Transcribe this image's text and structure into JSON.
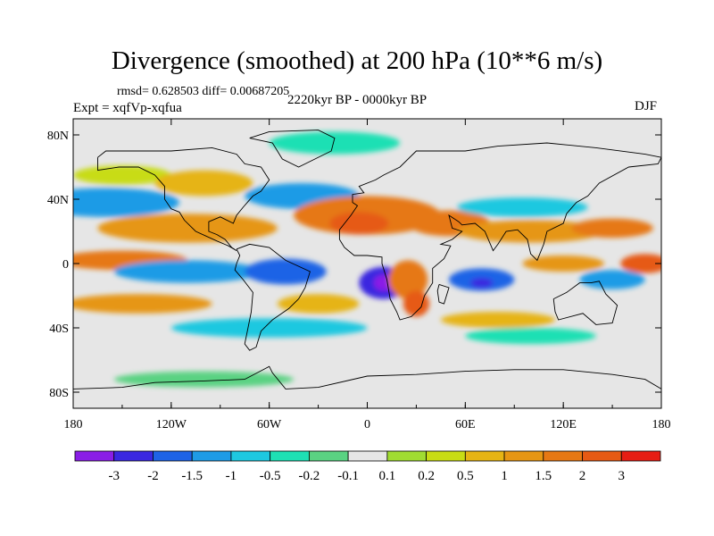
{
  "chart_data": {
    "type": "heatmap",
    "title": "Divergence (smoothed) at 200 hPa (10**6 m/s)",
    "stats_text": "rmsd= 0.628503 diff= 0.00687205",
    "experiment_text": "Expt = xqfVp-xqfua",
    "period_text": "2220kyr BP - 0000kyr BP",
    "season_text": "DJF",
    "x_range": [
      -180,
      180
    ],
    "y_range": [
      -90,
      90
    ],
    "x_ticks": [
      {
        "value": -180,
        "label": "180"
      },
      {
        "value": -120,
        "label": "120W"
      },
      {
        "value": -60,
        "label": "60W"
      },
      {
        "value": 0,
        "label": "0"
      },
      {
        "value": 60,
        "label": "60E"
      },
      {
        "value": 120,
        "label": "120E"
      },
      {
        "value": 180,
        "label": "180"
      }
    ],
    "y_ticks": [
      {
        "value": 80,
        "label": "80N"
      },
      {
        "value": 40,
        "label": "40N"
      },
      {
        "value": 0,
        "label": "0"
      },
      {
        "value": -40,
        "label": "40S"
      },
      {
        "value": -80,
        "label": "80S"
      }
    ],
    "colorbar": {
      "colors": [
        "#8a1ee6",
        "#3a28e0",
        "#1e63e6",
        "#1e9be6",
        "#1ec8e0",
        "#1ee0b4",
        "#5ad282",
        "#e6e6e6",
        "#a0dc32",
        "#c8dc14",
        "#e6b414",
        "#e69614",
        "#e67814",
        "#e65a14",
        "#e61e14"
      ],
      "labels": [
        "-3",
        "-2",
        "-1.5",
        "-1",
        "-0.5",
        "-0.2",
        "-0.1",
        "0.1",
        "0.2",
        "0.5",
        "1",
        "1.5",
        "2",
        "3"
      ]
    },
    "features": [
      {
        "name": "n-pacific-storm-track",
        "lon": -160,
        "lat": 38,
        "rx": 45,
        "ry": 9,
        "level": 3
      },
      {
        "name": "n-atlantic-band",
        "lon": -40,
        "lat": 42,
        "rx": 35,
        "ry": 8,
        "level": 3
      },
      {
        "name": "arctic-low",
        "lon": -20,
        "lat": 75,
        "rx": 40,
        "ry": 7,
        "level": 5
      },
      {
        "name": "n-pacific-high",
        "lon": -150,
        "lat": 55,
        "rx": 30,
        "ry": 6,
        "level": 9
      },
      {
        "name": "n-america-ridge",
        "lon": -100,
        "lat": 50,
        "rx": 30,
        "ry": 8,
        "level": 10
      },
      {
        "name": "mid-lat-band-west",
        "lon": -110,
        "lat": 22,
        "rx": 55,
        "ry": 9,
        "level": 11
      },
      {
        "name": "atlantic-africa-band",
        "lon": 0,
        "lat": 30,
        "rx": 45,
        "ry": 12,
        "level": 12
      },
      {
        "name": "n-africa-core",
        "lon": -5,
        "lat": 25,
        "rx": 18,
        "ry": 7,
        "level": 13
      },
      {
        "name": "arabia-band",
        "lon": 50,
        "lat": 25,
        "rx": 25,
        "ry": 8,
        "level": 12
      },
      {
        "name": "asia-band",
        "lon": 100,
        "lat": 20,
        "rx": 45,
        "ry": 7,
        "level": 11
      },
      {
        "name": "asia-low",
        "lon": 95,
        "lat": 35,
        "rx": 40,
        "ry": 6,
        "level": 4
      },
      {
        "name": "nw-pacific-core",
        "lon": 150,
        "lat": 22,
        "rx": 25,
        "ry": 6,
        "level": 12
      },
      {
        "name": "equatorial-pacific-east",
        "lon": -150,
        "lat": 2,
        "rx": 40,
        "ry": 6,
        "level": 12
      },
      {
        "name": "equatorial-pacific-west",
        "lon": 170,
        "lat": 0,
        "rx": 15,
        "ry": 6,
        "level": 13
      },
      {
        "name": "tropical-low-west",
        "lon": -110,
        "lat": -5,
        "rx": 45,
        "ry": 7,
        "level": 3
      },
      {
        "name": "amazon-low",
        "lon": -50,
        "lat": -5,
        "rx": 25,
        "ry": 8,
        "level": 2
      },
      {
        "name": "congo-low",
        "lon": 10,
        "lat": -12,
        "rx": 15,
        "ry": 10,
        "level": 1
      },
      {
        "name": "congo-core",
        "lon": 10,
        "lat": -12,
        "rx": 6,
        "ry": 5,
        "level": 0
      },
      {
        "name": "e-africa-high",
        "lon": 25,
        "lat": -10,
        "rx": 12,
        "ry": 12,
        "level": 12
      },
      {
        "name": "mozambique-core",
        "lon": 30,
        "lat": -25,
        "rx": 8,
        "ry": 8,
        "level": 13
      },
      {
        "name": "indian-ocean-low",
        "lon": 70,
        "lat": -10,
        "rx": 20,
        "ry": 7,
        "level": 2
      },
      {
        "name": "indian-ocean-core",
        "lon": 70,
        "lat": -12,
        "rx": 7,
        "ry": 3,
        "level": 1
      },
      {
        "name": "maritime-high",
        "lon": 120,
        "lat": 0,
        "rx": 25,
        "ry": 5,
        "level": 11
      },
      {
        "name": "w-pacific-low",
        "lon": 150,
        "lat": -10,
        "rx": 20,
        "ry": 6,
        "level": 3
      },
      {
        "name": "south-pacific-band",
        "lon": -140,
        "lat": -25,
        "rx": 45,
        "ry": 6,
        "level": 11
      },
      {
        "name": "s-atlantic-band",
        "lon": -30,
        "lat": -25,
        "rx": 25,
        "ry": 6,
        "level": 10
      },
      {
        "name": "southern-low",
        "lon": -60,
        "lat": -40,
        "rx": 60,
        "ry": 6,
        "level": 4
      },
      {
        "name": "s-indian-band",
        "lon": 80,
        "lat": -35,
        "rx": 35,
        "ry": 5,
        "level": 10
      },
      {
        "name": "s-ocean-low",
        "lon": 100,
        "lat": -45,
        "rx": 40,
        "ry": 5,
        "level": 5
      },
      {
        "name": "antarctic-low",
        "lon": -100,
        "lat": -72,
        "rx": 55,
        "ry": 5,
        "level": 6
      }
    ],
    "coastlines": [
      {
        "name": "north-america",
        "points": [
          [
            -165,
            66
          ],
          [
            -160,
            70
          ],
          [
            -140,
            70
          ],
          [
            -120,
            70
          ],
          [
            -95,
            72
          ],
          [
            -80,
            68
          ],
          [
            -75,
            62
          ],
          [
            -65,
            60
          ],
          [
            -60,
            52
          ],
          [
            -65,
            45
          ],
          [
            -70,
            42
          ],
          [
            -76,
            35
          ],
          [
            -80,
            30
          ],
          [
            -82,
            25
          ],
          [
            -90,
            29
          ],
          [
            -97,
            26
          ],
          [
            -97,
            20
          ],
          [
            -92,
            18
          ],
          [
            -87,
            15
          ],
          [
            -83,
            10
          ],
          [
            -80,
            8
          ],
          [
            -85,
            11
          ],
          [
            -92,
            14
          ],
          [
            -105,
            20
          ],
          [
            -112,
            27
          ],
          [
            -115,
            32
          ],
          [
            -120,
            34
          ],
          [
            -124,
            40
          ],
          [
            -124,
            48
          ],
          [
            -130,
            55
          ],
          [
            -140,
            60
          ],
          [
            -152,
            60
          ],
          [
            -165,
            58
          ],
          [
            -165,
            66
          ]
        ]
      },
      {
        "name": "south-america",
        "points": [
          [
            -80,
            9
          ],
          [
            -72,
            12
          ],
          [
            -60,
            10
          ],
          [
            -50,
            2
          ],
          [
            -35,
            -5
          ],
          [
            -38,
            -15
          ],
          [
            -42,
            -22
          ],
          [
            -48,
            -28
          ],
          [
            -58,
            -35
          ],
          [
            -65,
            -42
          ],
          [
            -68,
            -52
          ],
          [
            -72,
            -54
          ],
          [
            -75,
            -50
          ],
          [
            -73,
            -40
          ],
          [
            -71,
            -30
          ],
          [
            -70,
            -18
          ],
          [
            -76,
            -10
          ],
          [
            -81,
            -4
          ],
          [
            -80,
            0
          ],
          [
            -78,
            5
          ],
          [
            -80,
            9
          ]
        ]
      },
      {
        "name": "afro-eurasia",
        "points": [
          [
            -17,
            15
          ],
          [
            -17,
            21
          ],
          [
            -10,
            30
          ],
          [
            -6,
            36
          ],
          [
            -9,
            38
          ],
          [
            -9,
            43
          ],
          [
            -2,
            44
          ],
          [
            -5,
            48
          ],
          [
            5,
            52
          ],
          [
            10,
            55
          ],
          [
            20,
            60
          ],
          [
            30,
            70
          ],
          [
            60,
            70
          ],
          [
            80,
            73
          ],
          [
            110,
            75
          ],
          [
            140,
            72
          ],
          [
            170,
            68
          ],
          [
            180,
            66
          ],
          [
            178,
            62
          ],
          [
            160,
            60
          ],
          [
            142,
            50
          ],
          [
            135,
            42
          ],
          [
            128,
            38
          ],
          [
            122,
            31
          ],
          [
            120,
            25
          ],
          [
            110,
            20
          ],
          [
            108,
            12
          ],
          [
            104,
            2
          ],
          [
            100,
            6
          ],
          [
            98,
            15
          ],
          [
            92,
            21
          ],
          [
            85,
            20
          ],
          [
            80,
            12
          ],
          [
            77,
            8
          ],
          [
            72,
            20
          ],
          [
            66,
            25
          ],
          [
            58,
            24
          ],
          [
            56,
            26
          ],
          [
            50,
            30
          ],
          [
            52,
            22
          ],
          [
            58,
            20
          ],
          [
            52,
            15
          ],
          [
            45,
            12
          ],
          [
            51,
            11
          ],
          [
            47,
            3
          ],
          [
            40,
            -3
          ],
          [
            40,
            -12
          ],
          [
            35,
            -20
          ],
          [
            33,
            -27
          ],
          [
            27,
            -33
          ],
          [
            20,
            -35
          ],
          [
            18,
            -30
          ],
          [
            14,
            -22
          ],
          [
            12,
            -10
          ],
          [
            9,
            0
          ],
          [
            9,
            4
          ],
          [
            0,
            5
          ],
          [
            -8,
            5
          ],
          [
            -14,
            10
          ],
          [
            -17,
            15
          ]
        ]
      },
      {
        "name": "australia",
        "points": [
          [
            114,
            -22
          ],
          [
            122,
            -18
          ],
          [
            130,
            -12
          ],
          [
            137,
            -12
          ],
          [
            142,
            -11
          ],
          [
            146,
            -19
          ],
          [
            153,
            -26
          ],
          [
            150,
            -37
          ],
          [
            140,
            -38
          ],
          [
            132,
            -31
          ],
          [
            117,
            -35
          ],
          [
            115,
            -30
          ],
          [
            114,
            -22
          ]
        ]
      },
      {
        "name": "greenland",
        "points": [
          [
            -72,
            78
          ],
          [
            -60,
            82
          ],
          [
            -30,
            83
          ],
          [
            -20,
            78
          ],
          [
            -22,
            70
          ],
          [
            -42,
            60
          ],
          [
            -52,
            65
          ],
          [
            -58,
            75
          ],
          [
            -72,
            78
          ]
        ]
      },
      {
        "name": "madagascar",
        "points": [
          [
            44,
            -13
          ],
          [
            50,
            -15
          ],
          [
            47,
            -25
          ],
          [
            44,
            -24
          ],
          [
            43,
            -17
          ],
          [
            44,
            -13
          ]
        ]
      },
      {
        "name": "antarctica",
        "points": [
          [
            -180,
            -78
          ],
          [
            -150,
            -77
          ],
          [
            -130,
            -74
          ],
          [
            -100,
            -73
          ],
          [
            -75,
            -72
          ],
          [
            -60,
            -64
          ],
          [
            -58,
            -68
          ],
          [
            -50,
            -78
          ],
          [
            -30,
            -77
          ],
          [
            0,
            -70
          ],
          [
            30,
            -69
          ],
          [
            60,
            -67
          ],
          [
            90,
            -66
          ],
          [
            120,
            -66
          ],
          [
            150,
            -69
          ],
          [
            170,
            -72
          ],
          [
            180,
            -78
          ]
        ]
      }
    ]
  }
}
